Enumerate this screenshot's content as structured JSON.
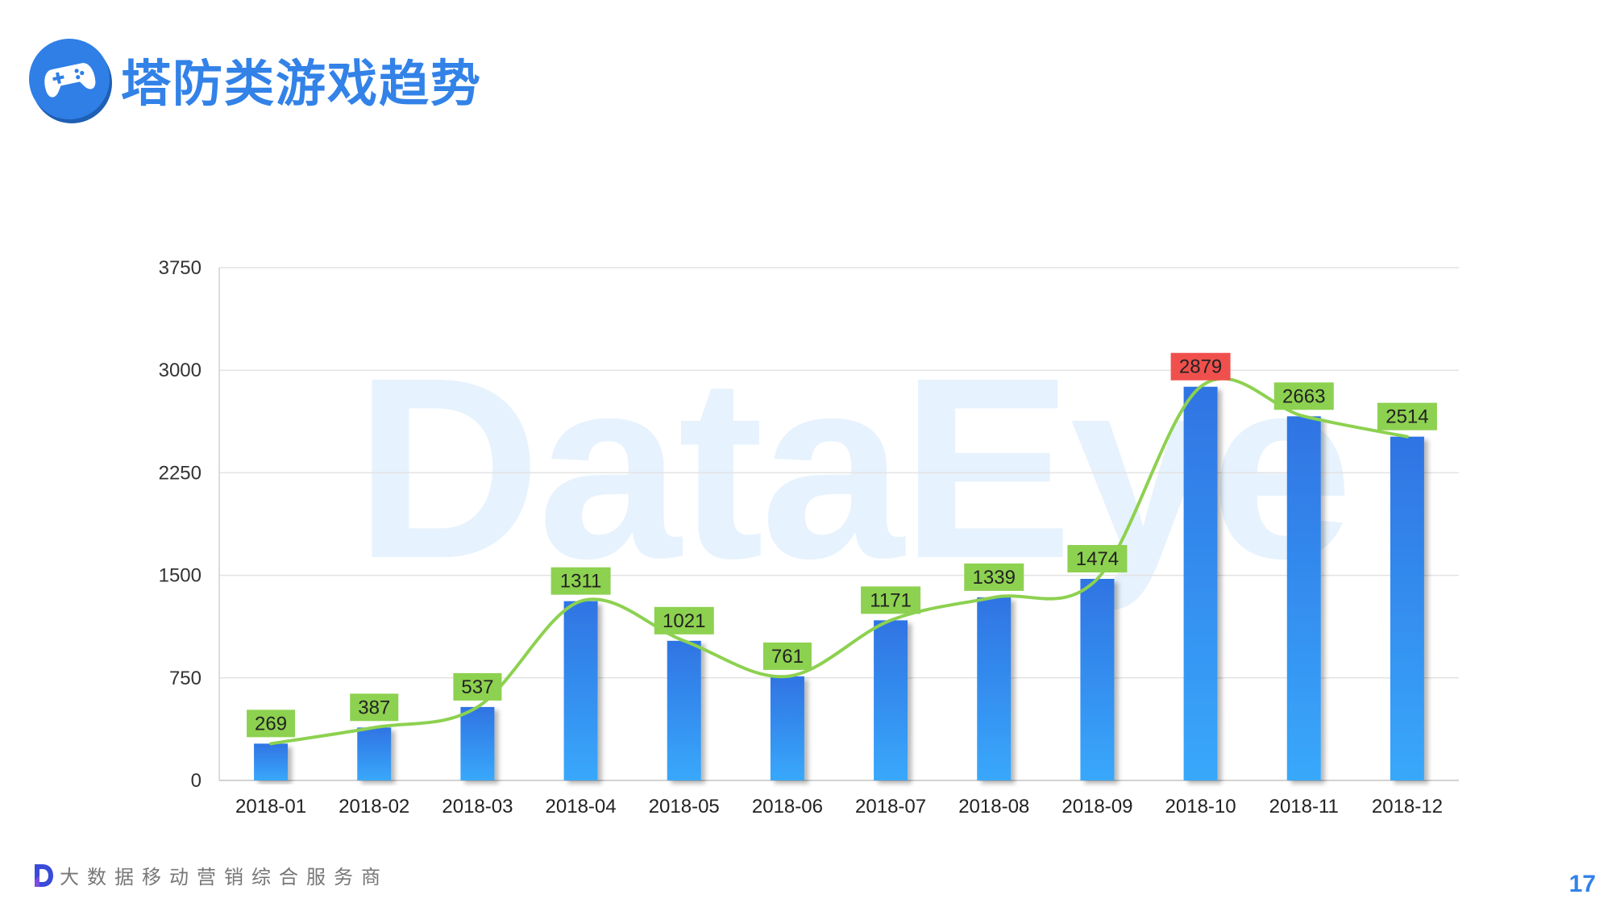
{
  "header": {
    "title": "塔防类游戏趋势",
    "icon": "gamepad-icon"
  },
  "watermark": "DataEye",
  "footer": {
    "text": "大数据移动营销综合服务商",
    "icon": "dataeye-logo-icon"
  },
  "page_number": "17",
  "colors": {
    "accent": "#3282e8",
    "bar_top": "#2f74e3",
    "bar_bottom": "#39a8fb",
    "line": "#8dd150",
    "label_bg": "#8dd150",
    "label_peak_bg": "#f0504d",
    "grid": "#e3e3e3"
  },
  "chart_data": {
    "type": "bar",
    "categories": [
      "2018-01",
      "2018-02",
      "2018-03",
      "2018-04",
      "2018-05",
      "2018-06",
      "2018-07",
      "2018-08",
      "2018-09",
      "2018-10",
      "2018-11",
      "2018-12"
    ],
    "series": [
      {
        "values": [
          269,
          387,
          537,
          1311,
          1021,
          761,
          1171,
          1339,
          1474,
          2879,
          2663,
          2514
        ]
      }
    ],
    "overlay_line": "smoothed trend line through bar values",
    "peak_label_highlight": "2018-10",
    "yticks": [
      "0",
      "750",
      "1500",
      "2250",
      "3000",
      "3750"
    ],
    "ylim": [
      0,
      3750
    ],
    "grid": true,
    "legend": "none",
    "title": "",
    "xlabel": "",
    "ylabel": ""
  }
}
